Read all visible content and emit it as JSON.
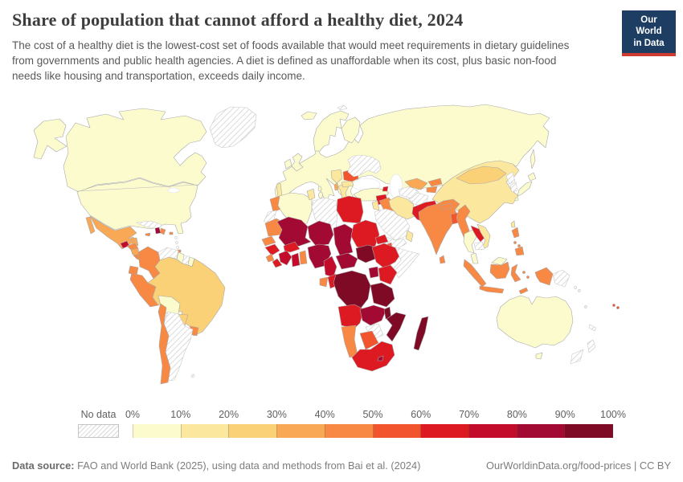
{
  "header": {
    "title": "Share of population that cannot afford a healthy diet, 2024",
    "subtitle": "The cost of a healthy diet is the lowest-cost set of foods available that would meet requirements in dietary guidelines from governments and public health agencies. A diet is defined as unaffordable when its cost, plus basic non-food needs like housing and transportation, exceeds daily income.",
    "logo": {
      "line1": "Our World",
      "line2": "in Data",
      "bg_color": "#1d3d63",
      "accent_color": "#cf3b31"
    }
  },
  "legend": {
    "no_data_label": "No data"
  },
  "footer": {
    "datasource_label": "Data source:",
    "datasource_text": " FAO and World Bank (2025), using data and methods from Bai et al. (2024)",
    "link_text": "OurWorldinData.org/food-prices | CC BY"
  },
  "chart_data": {
    "type": "heatmap",
    "subtype": "world-choropleth",
    "title": "Share of population that cannot afford a healthy diet, 2024",
    "unit": "% of population",
    "legend_position": "bottom",
    "scale": {
      "ticks": [
        "0%",
        "10%",
        "20%",
        "30%",
        "40%",
        "50%",
        "60%",
        "70%",
        "80%",
        "90%",
        "100%"
      ],
      "bin_labels": [
        "0-10%",
        "10-20%",
        "20-30%",
        "30-40%",
        "40-50%",
        "50-60%",
        "60-70%",
        "70-80%",
        "80-90%",
        "90-100%"
      ],
      "colors": [
        "#fcfbce",
        "#fbe89e",
        "#fbd178",
        "#f9a956",
        "#f78945",
        "#f2542d",
        "#dd1a21",
        "#c30b2b",
        "#a30a33",
        "#7e0a26"
      ],
      "no_data_fill": "hatched"
    },
    "regions": {
      "alaska": 0,
      "canada": 0,
      "united-states": 0,
      "greenland": "nodata",
      "mexico": 3,
      "belize": 3,
      "guatemala": 7,
      "honduras": 4,
      "nicaragua": 3,
      "costa-rica-panama": 4,
      "cuba": "nodata",
      "jamaica": 4,
      "haiti": 8,
      "dominican-republic": 4,
      "puerto-rico": 4,
      "lesser-antilles": "nodata",
      "trinidad": 4,
      "venezuela": "nodata",
      "colombia": 4,
      "guyana": 0,
      "suriname": "nodata",
      "french-guiana": 0,
      "ecuador": 4,
      "peru": 4,
      "brazil": 2,
      "bolivia": 0,
      "paraguay": 2,
      "uruguay": 4,
      "argentina": "nodata",
      "chile": 4,
      "falkland-islands": "nodata",
      "eurasia": 0,
      "portugal": 1,
      "scandinavia": 0,
      "finland": 0,
      "iceland": 0,
      "united-kingdom": 0,
      "ireland": 0,
      "svalbard": "nodata",
      "sicily": 0,
      "sardinia": 0,
      "corsica": 0,
      "crete": 1,
      "greece": 1,
      "bulgaria": 1,
      "hungary-balkans": 1,
      "albania": 3,
      "romania": 5,
      "moldova": 7,
      "ukraine": "nodata",
      "turkey": 0,
      "armenia": 6,
      "syria": 6,
      "israel-jordan": 1,
      "iraq": 4,
      "saudi-arabia": "nodata",
      "yemen": "nodata",
      "oman": 1,
      "iran": 1,
      "afghanistan": "nodata",
      "pakistan": 6,
      "turkmenistan": "nodata",
      "uzbekistan": 3,
      "kyrgyzstan": 4,
      "tajikistan": 4,
      "morocco": 4,
      "western-sahara": "nodata",
      "algeria": 0,
      "tunisia": 1,
      "libya": "nodata",
      "egypt": 6,
      "mauritania": 4,
      "senegal": 4,
      "guinea": 6,
      "sierra-leone": 4,
      "liberia": 6,
      "ivory-coast": 7,
      "ghana": 7,
      "togo-benin": 4,
      "burkina-faso": 6,
      "mali": 8,
      "niger": 8,
      "nigeria": 8,
      "chad": 8,
      "sudan": 6,
      "eritrea": 6,
      "djibouti": 5,
      "ethiopia": 6,
      "somalia": "nodata",
      "kenya": 6,
      "uganda": 8,
      "south-sudan": 9,
      "central-african-republic": 8,
      "cameroon": 7,
      "gabon": 4,
      "congo": 6,
      "dr-congo": 9,
      "tanzania": 9,
      "angola": 6,
      "zambia": 8,
      "malawi": 9,
      "mozambique": 9,
      "zimbabwe": "nodata",
      "botswana": 5,
      "namibia": 4,
      "south-africa": 6,
      "lesotho": 8,
      "madagascar": 9,
      "china": 1,
      "mongolia": 2,
      "hainan": 1,
      "taiwan": 1,
      "north-korea": "nodata",
      "south-korea": "nodata",
      "japan": 0,
      "sakhalin": 0,
      "india": 4,
      "nepal": 4,
      "bangladesh": 5,
      "sri-lanka": 4,
      "myanmar": 4,
      "laos": 6,
      "vietnam": 1,
      "thailand": 0,
      "cambodia": "nodata",
      "malaysia": 0,
      "borneo-malaysia": 0,
      "sumatra": 4,
      "java": 4,
      "borneo-indonesia": 4,
      "sulawesi": 4,
      "maluku": 4,
      "philippines": 4,
      "indonesian-papua": 4,
      "timor-leste": 4,
      "papua-new-guinea": "nodata",
      "australia": 0,
      "tasmania": 0,
      "new-zealand": "nodata",
      "new-caledonia": "nodata",
      "solomon-islands": "nodata",
      "vanuatu": "nodata",
      "fiji": 5
    }
  }
}
